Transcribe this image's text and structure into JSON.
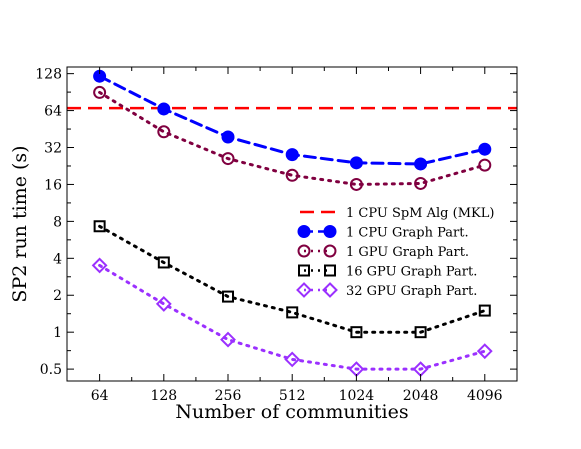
{
  "chart_data": {
    "type": "line",
    "xlabel": "Number of communities",
    "ylabel": "SP2 run time (s)",
    "x_scale": "log2",
    "y_scale": "log2",
    "x": [
      64,
      128,
      256,
      512,
      1024,
      2048,
      4096
    ],
    "x_tick_labels": [
      "64",
      "128",
      "256",
      "512",
      "1024",
      "2048",
      "4096"
    ],
    "y_ticks": [
      0.5,
      1,
      2,
      4,
      8,
      16,
      32,
      64,
      128
    ],
    "y_tick_labels": [
      "0.5",
      "1",
      "2",
      "4",
      "8",
      "16",
      "32",
      "64",
      "128"
    ],
    "xlim": [
      45,
      5800
    ],
    "ylim": [
      0.4,
      145
    ],
    "grid": false,
    "legend_position": "center-right",
    "reference_lines": [
      {
        "name": "1 CPU SpM Alg (MKL)",
        "value": 67,
        "color": "#ff0000",
        "style": "dashed"
      }
    ],
    "series": [
      {
        "name": "1 CPU Graph Part.",
        "values": [
          122,
          66,
          39,
          28,
          24,
          23.5,
          31
        ],
        "color": "#0000ff",
        "marker": "filled-circle",
        "line": "dashed"
      },
      {
        "name": "1 GPU Graph Part.",
        "values": [
          90,
          43,
          26,
          19,
          16,
          16.3,
          23
        ],
        "color": "#800040",
        "marker": "open-circle",
        "line": "dotted"
      },
      {
        "name": "16 GPU Graph Part.",
        "values": [
          7.3,
          3.7,
          1.95,
          1.45,
          1.0,
          1.0,
          1.5
        ],
        "color": "#000000",
        "marker": "open-square",
        "line": "dotted"
      },
      {
        "name": "32 GPU Graph Part.",
        "values": [
          3.5,
          1.7,
          0.87,
          0.6,
          0.5,
          0.5,
          0.7
        ],
        "color": "#9b30ff",
        "marker": "open-diamond",
        "line": "dotted"
      }
    ]
  }
}
